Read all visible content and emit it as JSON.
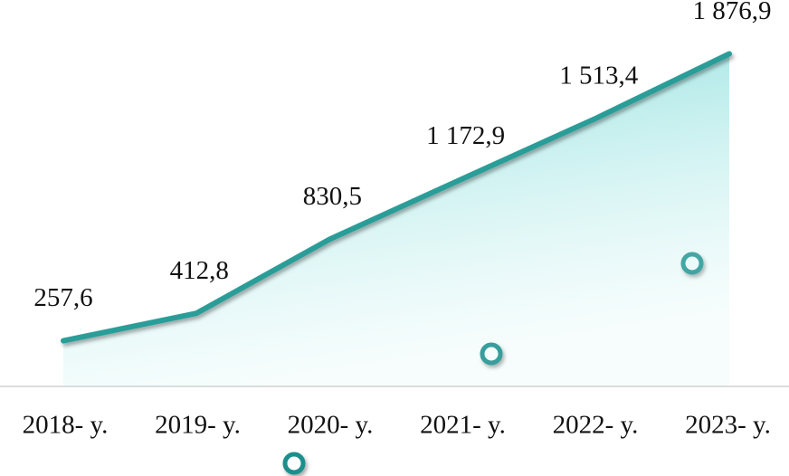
{
  "chart_data": {
    "type": "line",
    "categories": [
      "2018- y.",
      "2019- y.",
      "2020- y.",
      "2021- y.",
      "2022- y.",
      "2023- y."
    ],
    "values": [
      257.6,
      412.8,
      830.5,
      1172.9,
      1513.4,
      1876.9
    ],
    "value_labels": [
      "257,6",
      "412,8",
      "830,5",
      "1 172,9",
      "1 513,4",
      "1 876,9"
    ],
    "color": "#2a9d98",
    "ylim": [
      0,
      2000
    ]
  }
}
